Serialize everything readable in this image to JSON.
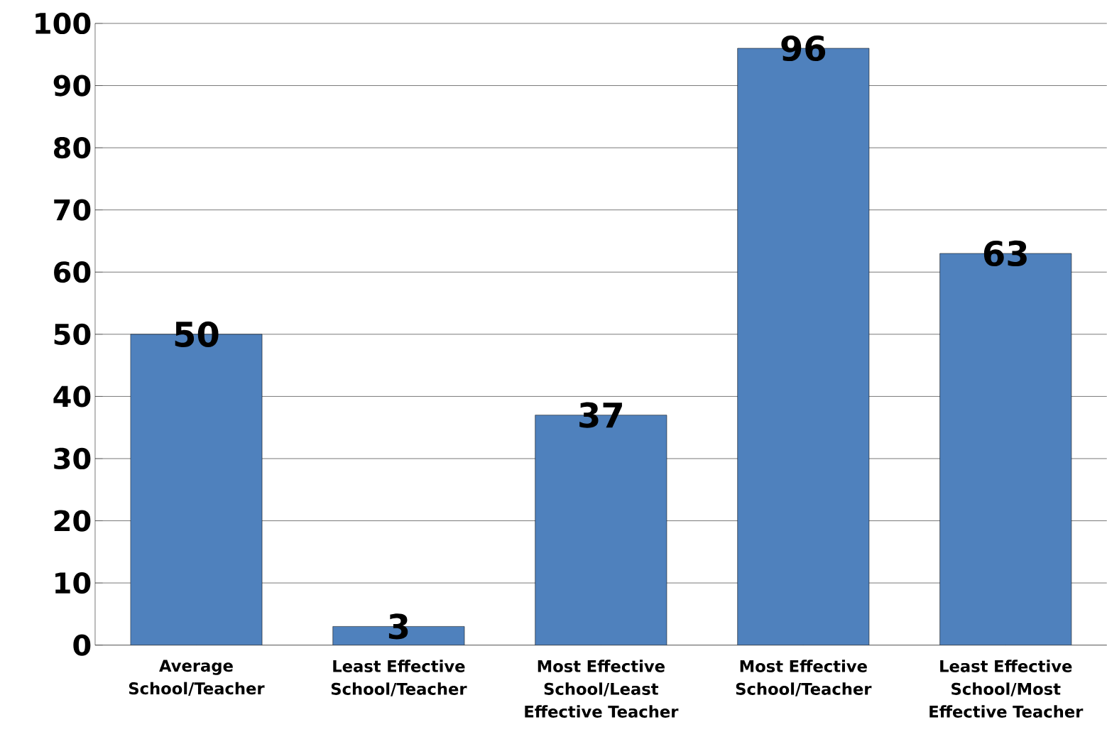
{
  "chart_data": {
    "type": "bar",
    "categories": [
      "Average School/Teacher",
      "Least Effective School/Teacher",
      "Most Effective School/Least Effective Teacher",
      "Most Effective School/Teacher",
      "Least Effective School/Most Effective Teacher"
    ],
    "values": [
      50,
      3,
      37,
      96,
      63
    ],
    "color": "#4f81bd",
    "ylim": [
      0,
      100
    ],
    "yticks": [
      0,
      10,
      20,
      30,
      40,
      50,
      60,
      70,
      80,
      90,
      100
    ],
    "grid": "y",
    "data_labels": true
  }
}
